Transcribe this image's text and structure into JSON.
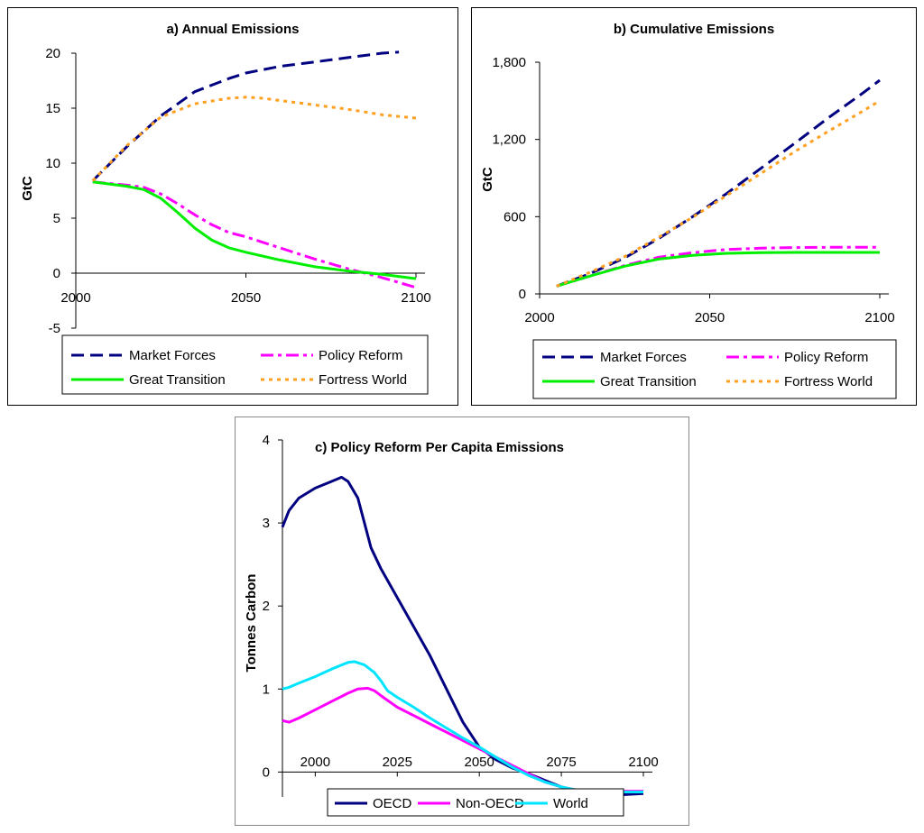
{
  "chart_data": [
    {
      "type": "line",
      "title": "a) Annual Emissions",
      "xlabel": "",
      "ylabel": "GtC",
      "xlim": [
        2000,
        2100
      ],
      "ylim": [
        -5,
        20
      ],
      "x_ticks": [
        "2000",
        "2050",
        "2100"
      ],
      "y_ticks": [
        "20",
        "15",
        "10",
        "5",
        "0",
        "-5"
      ],
      "legend": [
        "Market Forces",
        "Policy Reform",
        "Great Transition",
        "Fortress World"
      ],
      "series": [
        {
          "name": "Market Forces",
          "color": "#000080",
          "dash": "dash",
          "x": [
            2005,
            2015,
            2025,
            2035,
            2045,
            2050,
            2060,
            2070,
            2080,
            2090,
            2095
          ],
          "y": [
            8.4,
            11.5,
            14.3,
            16.5,
            17.7,
            18.2,
            18.8,
            19.2,
            19.6,
            20.0,
            20.1
          ]
        },
        {
          "name": "Policy Reform",
          "color": "#ff00ff",
          "dash": "dashdot",
          "x": [
            2005,
            2015,
            2020,
            2025,
            2030,
            2035,
            2040,
            2045,
            2050,
            2060,
            2070,
            2080,
            2090,
            2100
          ],
          "y": [
            8.3,
            8.0,
            7.8,
            7.2,
            6.3,
            5.3,
            4.4,
            3.7,
            3.3,
            2.3,
            1.3,
            0.4,
            -0.4,
            -1.3
          ]
        },
        {
          "name": "Great Transition",
          "color": "#00ee00",
          "dash": "solid",
          "x": [
            2005,
            2015,
            2020,
            2025,
            2030,
            2035,
            2040,
            2045,
            2050,
            2060,
            2070,
            2080,
            2090,
            2100
          ],
          "y": [
            8.3,
            7.9,
            7.6,
            6.8,
            5.5,
            4.1,
            3.0,
            2.3,
            1.9,
            1.2,
            0.6,
            0.2,
            -0.1,
            -0.5
          ]
        },
        {
          "name": "Fortress World",
          "color": "#ffa020",
          "dash": "dot",
          "x": [
            2005,
            2015,
            2025,
            2035,
            2045,
            2050,
            2055,
            2060,
            2070,
            2080,
            2090,
            2100
          ],
          "y": [
            8.4,
            11.6,
            14.2,
            15.4,
            15.9,
            16.0,
            15.9,
            15.7,
            15.3,
            14.9,
            14.4,
            14.1
          ]
        }
      ]
    },
    {
      "type": "line",
      "title": "b) Cumulative Emissions",
      "xlabel": "",
      "ylabel": "GtC",
      "xlim": [
        2000,
        2100
      ],
      "ylim": [
        0,
        1800
      ],
      "x_ticks": [
        "2000",
        "2050",
        "2100"
      ],
      "y_ticks": [
        "1,800",
        "1,200",
        "600",
        "0"
      ],
      "legend": [
        "Market Forces",
        "Policy Reform",
        "Great Transition",
        "Fortress World"
      ],
      "series": [
        {
          "name": "Market Forces",
          "color": "#000080",
          "dash": "dash",
          "x": [
            2005,
            2015,
            2025,
            2035,
            2045,
            2055,
            2065,
            2075,
            2085,
            2095,
            2100
          ],
          "y": [
            60,
            160,
            280,
            430,
            600,
            780,
            975,
            1170,
            1370,
            1560,
            1660
          ]
        },
        {
          "name": "Policy Reform",
          "color": "#ff00ff",
          "dash": "dashdot",
          "x": [
            2005,
            2015,
            2025,
            2035,
            2045,
            2055,
            2065,
            2075,
            2085,
            2095,
            2100
          ],
          "y": [
            60,
            140,
            220,
            285,
            320,
            345,
            355,
            360,
            362,
            363,
            363
          ]
        },
        {
          "name": "Great Transition",
          "color": "#00ee00",
          "dash": "solid",
          "x": [
            2005,
            2015,
            2025,
            2035,
            2045,
            2055,
            2065,
            2075,
            2085,
            2095,
            2100
          ],
          "y": [
            60,
            140,
            215,
            270,
            300,
            315,
            320,
            322,
            322,
            322,
            322
          ]
        },
        {
          "name": "Fortress World",
          "color": "#ffa020",
          "dash": "dot",
          "x": [
            2005,
            2015,
            2025,
            2035,
            2045,
            2055,
            2065,
            2075,
            2085,
            2095,
            2100
          ],
          "y": [
            60,
            170,
            290,
            440,
            595,
            765,
            935,
            1105,
            1265,
            1420,
            1500
          ]
        }
      ]
    },
    {
      "type": "line",
      "title": "c) Policy Reform Per Capita Emissions",
      "xlabel": "",
      "ylabel": "Tonnes Carbon",
      "xlim": [
        1990,
        2100
      ],
      "ylim": [
        -0.3,
        4
      ],
      "x_ticks": [
        "2000",
        "2025",
        "2050",
        "2075",
        "2100"
      ],
      "y_ticks": [
        "4",
        "3",
        "2",
        "1",
        "0"
      ],
      "legend": [
        "OECD",
        "Non-OECD",
        "World"
      ],
      "series": [
        {
          "name": "OECD",
          "color": "#000080",
          "dash": "solid",
          "x": [
            1990,
            1992,
            1995,
            2000,
            2005,
            2008,
            2010,
            2013,
            2015,
            2017,
            2020,
            2025,
            2030,
            2035,
            2040,
            2045,
            2050,
            2055,
            2060,
            2065,
            2070,
            2075,
            2080,
            2085,
            2090,
            2095,
            2100
          ],
          "y": [
            2.95,
            3.15,
            3.3,
            3.42,
            3.5,
            3.55,
            3.5,
            3.3,
            3.0,
            2.7,
            2.45,
            2.1,
            1.75,
            1.4,
            1.0,
            0.6,
            0.3,
            0.15,
            0.05,
            -0.02,
            -0.1,
            -0.18,
            -0.24,
            -0.27,
            -0.28,
            -0.27,
            -0.26
          ]
        },
        {
          "name": "Non-OECD",
          "color": "#ff00ff",
          "dash": "solid",
          "x": [
            1990,
            1992,
            1995,
            2000,
            2005,
            2010,
            2013,
            2016,
            2018,
            2020,
            2025,
            2030,
            2035,
            2040,
            2045,
            2050,
            2055,
            2060,
            2065,
            2070,
            2075,
            2080,
            2085,
            2090,
            2095,
            2100
          ],
          "y": [
            0.62,
            0.6,
            0.65,
            0.75,
            0.85,
            0.95,
            1.0,
            1.01,
            0.98,
            0.92,
            0.78,
            0.68,
            0.58,
            0.48,
            0.38,
            0.28,
            0.18,
            0.08,
            -0.02,
            -0.12,
            -0.18,
            -0.22,
            -0.23,
            -0.23,
            -0.23,
            -0.23
          ]
        },
        {
          "name": "World",
          "color": "#00e5ff",
          "dash": "solid",
          "x": [
            1990,
            1992,
            1995,
            2000,
            2005,
            2010,
            2012,
            2015,
            2018,
            2020,
            2022,
            2025,
            2030,
            2035,
            2040,
            2045,
            2050,
            2055,
            2060,
            2065,
            2070,
            2075,
            2080,
            2085,
            2090,
            2095,
            2100
          ],
          "y": [
            1.0,
            1.02,
            1.07,
            1.15,
            1.24,
            1.32,
            1.33,
            1.29,
            1.2,
            1.1,
            0.98,
            0.9,
            0.78,
            0.65,
            0.53,
            0.41,
            0.3,
            0.18,
            0.06,
            -0.04,
            -0.12,
            -0.18,
            -0.22,
            -0.24,
            -0.24,
            -0.24,
            -0.24
          ]
        }
      ]
    }
  ]
}
